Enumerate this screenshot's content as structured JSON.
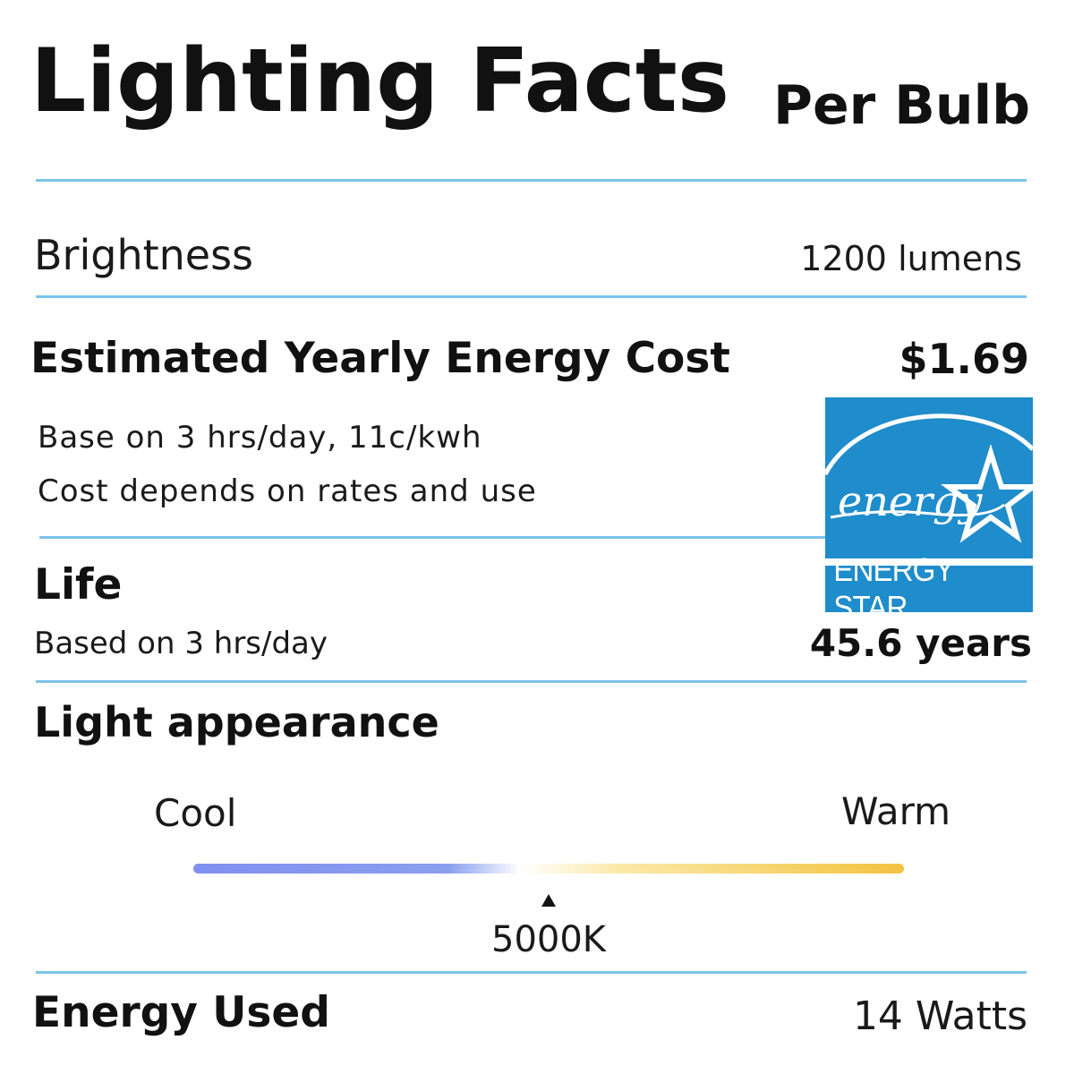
{
  "header": {
    "title": "Lighting Facts",
    "subtitle": "Per Bulb"
  },
  "brightness": {
    "label": "Brightness",
    "value": "1200 lumens"
  },
  "energy_cost": {
    "label": "Estimated Yearly Energy Cost",
    "value": "$1.69",
    "note_1": "Base on 3 hrs/day, 11c/kwh",
    "note_2": "Cost depends on rates and use"
  },
  "energy_star": {
    "script_text": "energy",
    "label": "ENERGY STAR",
    "color": "#1f8ccb"
  },
  "life": {
    "label": "Life",
    "note": "Based on 3 hrs/day",
    "value": "45.6 years"
  },
  "light_appearance": {
    "label": "Light appearance",
    "cool_label": "Cool",
    "warm_label": "Warm",
    "marker_label": "5000K",
    "marker_position": 0.5,
    "gradient_colors": [
      "#7f8ff0",
      "#8aa0ee",
      "#ffffff",
      "#fbe9a8",
      "#f3c33f"
    ]
  },
  "energy_used": {
    "label": "Energy Used",
    "value": "14 Watts"
  },
  "colors": {
    "rule": "#7cc3ea",
    "text": "#111111"
  }
}
